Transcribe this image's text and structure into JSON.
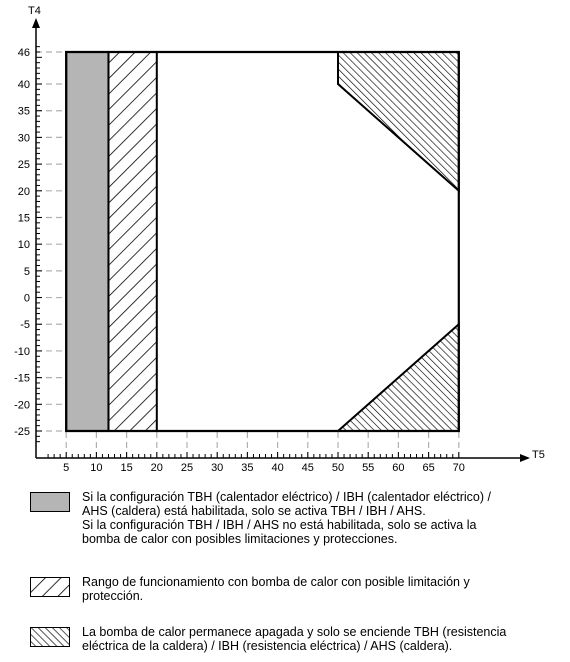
{
  "chart_data": {
    "type": "area",
    "xlabel": "T5",
    "ylabel": "T4",
    "x_ticks": [
      5,
      10,
      15,
      20,
      25,
      30,
      35,
      40,
      45,
      50,
      55,
      60,
      65,
      70
    ],
    "y_ticks": [
      46,
      40,
      35,
      30,
      25,
      20,
      15,
      10,
      5,
      0,
      -5,
      -10,
      -15,
      -20,
      -25
    ],
    "xlim": [
      0,
      72
    ],
    "ylim": [
      -29,
      49
    ],
    "grid": "dashed",
    "regions": [
      {
        "name": "gray",
        "pattern": "solid-gray",
        "polygon": [
          [
            5,
            -25
          ],
          [
            12,
            -25
          ],
          [
            12,
            46
          ],
          [
            5,
            46
          ]
        ]
      },
      {
        "name": "hatch",
        "pattern": "forward-diagonal",
        "polygon": [
          [
            12,
            -25
          ],
          [
            20,
            -25
          ],
          [
            20,
            46
          ],
          [
            12,
            46
          ]
        ]
      },
      {
        "name": "dense-top-right",
        "pattern": "back-diagonal",
        "polygon": [
          [
            50,
            46
          ],
          [
            70,
            46
          ],
          [
            70,
            20
          ],
          [
            50,
            40
          ]
        ]
      },
      {
        "name": "dense-bottom-right",
        "pattern": "back-diagonal",
        "polygon": [
          [
            50,
            -25
          ],
          [
            70,
            -25
          ],
          [
            70,
            -5
          ]
        ]
      }
    ],
    "outline": [
      [
        5,
        -25
      ],
      [
        70,
        -25
      ],
      [
        70,
        46
      ],
      [
        5,
        46
      ]
    ]
  },
  "legend": [
    {
      "pattern": "solid-gray",
      "text": "Si la configuración TBH (calentador eléctrico) / IBH (calentador eléctrico) /\nAHS (caldera) está habilitada, solo se activa TBH / IBH / AHS.\nSi la configuración TBH / IBH / AHS no está habilitada, solo se activa la\nbomba de calor con posibles limitaciones y protecciones."
    },
    {
      "pattern": "forward-diagonal",
      "text": "Rango de funcionamiento con bomba de calor con posible limitación y\nprotección."
    },
    {
      "pattern": "back-diagonal",
      "text": "La bomba de calor permanece apagada y solo se enciende TBH (resistencia\neléctrica de la caldera) / IBH (resistencia eléctrica) / AHS (caldera)."
    }
  ]
}
